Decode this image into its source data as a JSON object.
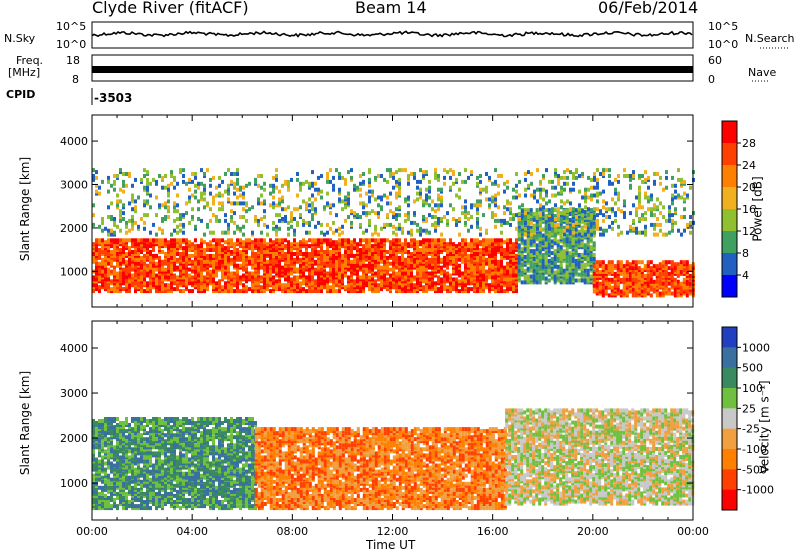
{
  "header": {
    "station": "Clyde River (fitACF)",
    "beam": "Beam 14",
    "date": "06/Feb/2014"
  },
  "strip_panels": {
    "nsky_label": "N.Sky",
    "nsearch_label": "N.Search",
    "freq_label_1": "Freq.",
    "freq_label_2": "[MHz]",
    "nave_label": "Nave",
    "cpid_label": "CPID",
    "cpid_value": "-3503",
    "nsky_ticks": [
      "10^5",
      "10^0"
    ],
    "nsearch_ticks": [
      "10^5",
      "10^0"
    ],
    "freq_ticks": [
      "18",
      "8"
    ],
    "nave_ticks": [
      "60",
      "0"
    ]
  },
  "chart_data": [
    {
      "type": "heatmap",
      "panel": "power",
      "ylabel": "Slant Range [km]",
      "xlabel": "",
      "y_ticks": [
        1000,
        2000,
        3000,
        4000
      ],
      "ylim": [
        180,
        4600
      ],
      "colorbar": {
        "label": "Power [dB]",
        "ticks": [
          28,
          24,
          20,
          16,
          12,
          8,
          4
        ],
        "colors": [
          "#ff0000",
          "#ff4000",
          "#ff8000",
          "#f0b020",
          "#90c030",
          "#40a060",
          "#2060c0",
          "#0000ff"
        ]
      },
      "echo_bands": [
        {
          "x_start": "00:00",
          "x_end": "17:00",
          "range_km": [
            500,
            1700
          ],
          "dominant_power_db": 28
        },
        {
          "x_start": "17:00",
          "x_end": "20:00",
          "range_km": [
            700,
            2400
          ],
          "dominant_power_db": 12
        },
        {
          "x_start": "20:00",
          "x_end": "24:00",
          "range_km": [
            400,
            1200
          ],
          "dominant_power_db": 28
        },
        {
          "x_start": "00:00",
          "x_end": "24:00",
          "range_km": [
            1800,
            3300
          ],
          "dominant_power_db": 16
        }
      ]
    },
    {
      "type": "heatmap",
      "panel": "velocity",
      "ylabel": "Slant Range [km]",
      "xlabel": "Time UT",
      "x_ticks": [
        "00:00",
        "04:00",
        "08:00",
        "12:00",
        "16:00",
        "20:00",
        "00:00"
      ],
      "y_ticks": [
        1000,
        2000,
        3000,
        4000
      ],
      "ylim": [
        180,
        4600
      ],
      "colorbar": {
        "label": "Velocity [m s⁻¹]",
        "ticks": [
          "1000",
          "500",
          "100",
          "25",
          "-25",
          "-100",
          "-500",
          "-1000"
        ],
        "colors": [
          "#2040c0",
          "#3a70a0",
          "#3a8a60",
          "#70c040",
          "#c8c8c8",
          "#f0a040",
          "#ff8000",
          "#ff4000",
          "#ff0000"
        ]
      },
      "echo_bands": [
        {
          "x_start": "00:00",
          "x_end": "06:30",
          "range_km": [
            400,
            2400
          ],
          "dominant_velocity": 500
        },
        {
          "x_start": "06:30",
          "x_end": "16:30",
          "range_km": [
            400,
            2200
          ],
          "dominant_velocity": -500
        },
        {
          "x_start": "16:30",
          "x_end": "24:00",
          "range_km": [
            500,
            2600
          ],
          "dominant_velocity": -25
        }
      ]
    }
  ]
}
